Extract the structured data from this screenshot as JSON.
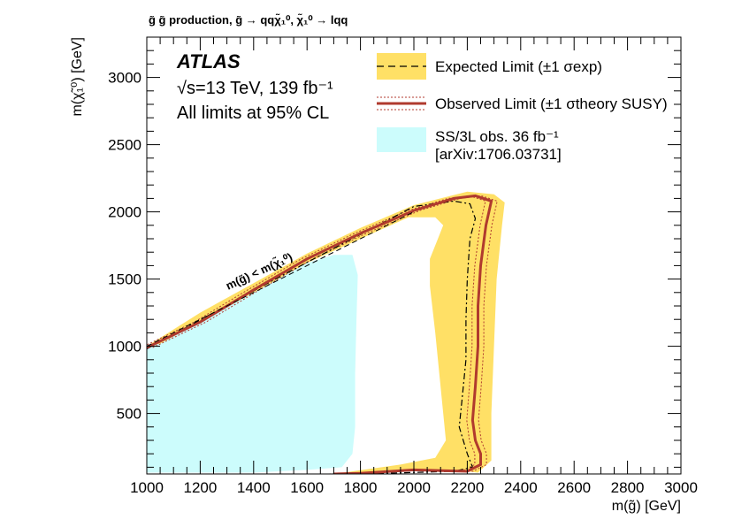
{
  "chart_data": {
    "type": "area",
    "title": "g̃ g̃ production, g̃ → qqχ̃₁⁰, χ̃₁⁰ → lqq",
    "experiment": "ATLAS",
    "energy_lumi": "√s=13 TeV, 139 fb⁻¹",
    "cl_note": "All limits at 95% CL",
    "xlabel": "m(g̃) [GeV]",
    "ylabel": "m(χ̃₁⁰) [GeV]",
    "xlim": [
      1000,
      3000
    ],
    "ylim": [
      50,
      3300
    ],
    "xticks": [
      "1000",
      "1200",
      "1400",
      "1600",
      "1800",
      "2000",
      "2200",
      "2400",
      "2600",
      "2800",
      "3000"
    ],
    "yticks": [
      "500",
      "1000",
      "1500",
      "2000",
      "2500",
      "3000"
    ],
    "kinematic_label": "m(g̃) < m(χ̃₁⁰)",
    "legend": [
      {
        "key": "expected",
        "label": "Expected Limit (±1 σexp)"
      },
      {
        "key": "observed",
        "label": "Observed Limit (±1 σtheory SUSY)"
      },
      {
        "key": "previous",
        "label_line1": "SS/3L obs. 36 fb⁻¹",
        "label_line2": "[arXiv:1706.03731]"
      }
    ],
    "colors": {
      "expected_band": "#ffe066",
      "observed": "#b03a2e",
      "previous": "#ccfcfc",
      "kinematic": "#000000"
    },
    "series": [
      {
        "name": "expected_band_outer",
        "points": [
          [
            1000,
            1000
          ],
          [
            1200,
            1250
          ],
          [
            1400,
            1470
          ],
          [
            1600,
            1690
          ],
          [
            1800,
            1880
          ],
          [
            2000,
            2050
          ],
          [
            2200,
            2150
          ],
          [
            2300,
            2130
          ],
          [
            2340,
            2070
          ],
          [
            2330,
            1900
          ],
          [
            2310,
            1500
          ],
          [
            2300,
            1000
          ],
          [
            2290,
            500
          ],
          [
            2290,
            150
          ],
          [
            2240,
            60
          ],
          [
            2150,
            80
          ],
          [
            1900,
            70
          ],
          [
            1700,
            50
          ],
          [
            1950,
            120
          ],
          [
            2080,
            170
          ],
          [
            2120,
            300
          ],
          [
            2100,
            700
          ],
          [
            2080,
            1100
          ],
          [
            2060,
            1450
          ],
          [
            2060,
            1650
          ],
          [
            2090,
            1800
          ],
          [
            2110,
            1900
          ],
          [
            2080,
            1960
          ],
          [
            1980,
            1960
          ],
          [
            1800,
            1800
          ],
          [
            1600,
            1620
          ],
          [
            1400,
            1400
          ],
          [
            1200,
            1180
          ],
          [
            1050,
            1020
          ],
          [
            1000,
            1000
          ]
        ]
      },
      {
        "name": "expected",
        "points": [
          [
            1000,
            980
          ],
          [
            1500,
            1520
          ],
          [
            2000,
            2040
          ],
          [
            2150,
            2080
          ],
          [
            2210,
            2060
          ],
          [
            2230,
            1950
          ],
          [
            2210,
            1800
          ],
          [
            2200,
            1500
          ],
          [
            2195,
            1200
          ],
          [
            2195,
            900
          ],
          [
            2180,
            600
          ],
          [
            2170,
            400
          ],
          [
            2200,
            200
          ],
          [
            2220,
            100
          ],
          [
            2150,
            70
          ],
          [
            1800,
            50
          ]
        ]
      },
      {
        "name": "observed",
        "points": [
          [
            1000,
            990
          ],
          [
            1200,
            1180
          ],
          [
            1400,
            1420
          ],
          [
            1600,
            1650
          ],
          [
            1800,
            1840
          ],
          [
            2000,
            2010
          ],
          [
            2100,
            2070
          ],
          [
            2150,
            2100
          ],
          [
            2230,
            2120
          ],
          [
            2290,
            2080
          ],
          [
            2270,
            1900
          ],
          [
            2250,
            1600
          ],
          [
            2240,
            1300
          ],
          [
            2240,
            1000
          ],
          [
            2230,
            700
          ],
          [
            2220,
            450
          ],
          [
            2230,
            300
          ],
          [
            2250,
            200
          ],
          [
            2250,
            120
          ],
          [
            2200,
            70
          ],
          [
            2000,
            80
          ],
          [
            1800,
            55
          ],
          [
            1700,
            50
          ]
        ]
      },
      {
        "name": "previous_obs_36fb",
        "points": [
          [
            1000,
            60
          ],
          [
            1000,
            990
          ],
          [
            1200,
            1200
          ],
          [
            1400,
            1420
          ],
          [
            1600,
            1620
          ],
          [
            1700,
            1680
          ],
          [
            1770,
            1680
          ],
          [
            1790,
            1530
          ],
          [
            1785,
            1200
          ],
          [
            1780,
            800
          ],
          [
            1780,
            400
          ],
          [
            1770,
            200
          ],
          [
            1730,
            100
          ],
          [
            1600,
            80
          ],
          [
            1400,
            60
          ],
          [
            1000,
            60
          ]
        ]
      }
    ]
  }
}
